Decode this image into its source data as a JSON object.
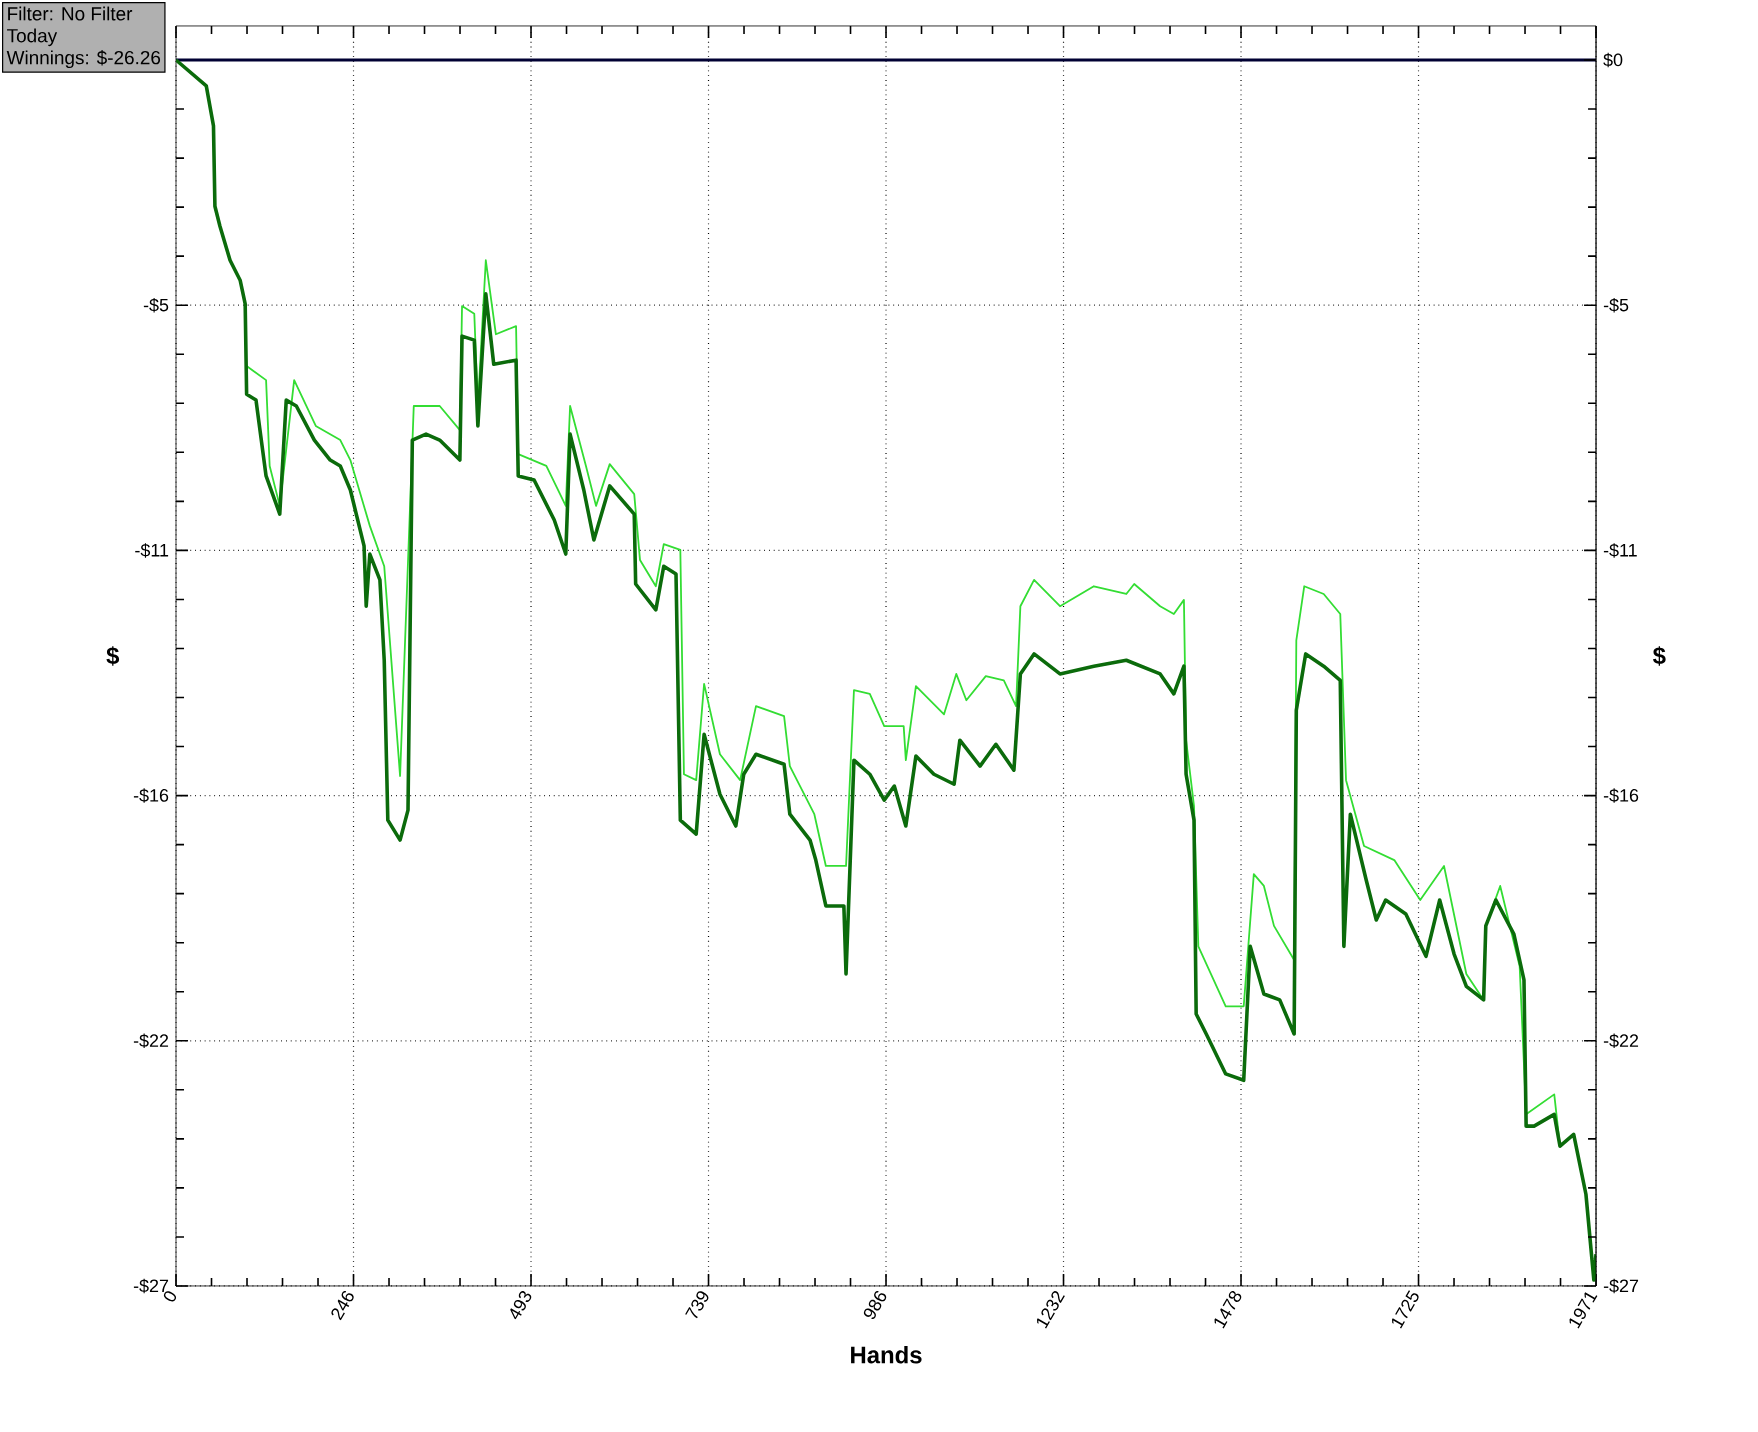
{
  "chart_data": {
    "type": "line",
    "xlabel": "Hands",
    "ylabel": "$",
    "y2label": "$",
    "annotations": [
      "Filter: No Filter",
      "Today",
      "Winnings: $-26.26"
    ],
    "xlim": [
      0,
      1971
    ],
    "xticks": [
      0,
      {
        "value": 246.375,
        "label": "246"
      },
      {
        "value": 492.75,
        "label": "493"
      },
      {
        "value": 739.125,
        "label": "739"
      },
      {
        "value": 985.5,
        "label": "986"
      },
      {
        "value": 1231.875,
        "label": "1232"
      },
      {
        "value": 1478.25,
        "label": "1478"
      },
      {
        "value": 1724.625,
        "label": "1725"
      },
      1971
    ],
    "ylim": [
      -27,
      0.75
    ],
    "yticks": [
      {
        "value": 0,
        "label": null
      },
      {
        "value": -5.4,
        "label": "-$5"
      },
      {
        "value": -10.8,
        "label": "-$11"
      },
      {
        "value": -16.2,
        "label": "-$16"
      },
      {
        "value": -21.6,
        "label": "-$22"
      },
      {
        "value": -27,
        "label": "-$27"
      }
    ],
    "y2lim": [
      -27,
      0.75
    ],
    "y2ticks": [
      {
        "value": 0,
        "label": "$0"
      },
      {
        "value": -5.4,
        "label": "-$5"
      },
      {
        "value": -10.8,
        "label": "-$11"
      },
      {
        "value": -16.2,
        "label": "-$16"
      },
      {
        "value": -21.6,
        "label": "-$22"
      },
      {
        "value": -27,
        "label": "-$27"
      }
    ],
    "grid": true,
    "ref_lines": [
      {
        "axis": "y",
        "value": 0,
        "color": "#000033"
      }
    ],
    "series": [
      {
        "color": "#33dd33",
        "x": [
          98,
          125,
          130,
          144,
          164,
          194,
          228,
          242,
          269,
          289,
          311,
          330,
          366,
          394,
          397,
          414,
          419,
          430,
          444,
          472,
          475,
          514,
          541,
          547,
          569,
          583,
          602,
          636,
          644,
          666,
          677,
          700,
          705,
          722,
          733,
          755,
          783,
          805,
          844,
          852,
          886,
          902,
          930,
          941,
          963,
          983,
          1010,
          1013,
          1027,
          1066,
          1083,
          1097,
          1124,
          1149,
          1166,
          1172,
          1191,
          1227,
          1274,
          1319,
          1330,
          1366,
          1385,
          1399,
          1402,
          1413,
          1419,
          1457,
          1482,
          1496,
          1510,
          1524,
          1552,
          1555,
          1566,
          1593,
          1616,
          1624,
          1649,
          1691,
          1727,
          1760,
          1791,
          1815,
          1818,
          1838,
          1865,
          1874,
          1913,
          1921,
          1940
        ],
        "values": [
          -6.74,
          -7.05,
          -8.94,
          -9.82,
          -7.05,
          -8.06,
          -8.37,
          -8.81,
          -10.26,
          -11.15,
          -15.77,
          -7.62,
          -7.62,
          -8.15,
          -5.42,
          -5.59,
          -7.62,
          -4.41,
          -6.04,
          -5.86,
          -8.68,
          -8.94,
          -9.82,
          -7.62,
          -8.94,
          -9.82,
          -8.9,
          -9.56,
          -11.01,
          -11.59,
          -10.66,
          -10.79,
          -15.73,
          -15.86,
          -13.74,
          -15.29,
          -15.86,
          -14.23,
          -14.45,
          -15.55,
          -16.61,
          -17.75,
          -17.75,
          -13.88,
          -13.96,
          -14.67,
          -14.67,
          -15.42,
          -13.79,
          -14.41,
          -13.52,
          -14.1,
          -13.57,
          -13.66,
          -14.23,
          -12.03,
          -11.45,
          -12.03,
          -11.59,
          -11.76,
          -11.54,
          -12.03,
          -12.2,
          -11.89,
          -14.98,
          -16.43,
          -19.52,
          -20.84,
          -20.84,
          -17.93,
          -18.19,
          -19.07,
          -19.82,
          -12.78,
          -11.59,
          -11.76,
          -12.2,
          -15.86,
          -17.31,
          -17.62,
          -18.5,
          -17.75,
          -20.13,
          -20.7,
          -19.07,
          -18.19,
          -19.96,
          -23.22,
          -22.78,
          -23.92,
          -23.66
        ]
      },
      {
        "color": "#0b6b0b",
        "x": [
          0,
          42,
          52,
          54,
          61,
          75,
          89,
          96,
          98,
          111,
          125,
          144,
          153,
          167,
          192,
          214,
          228,
          242,
          261,
          264,
          269,
          283,
          289,
          294,
          311,
          322,
          328,
          347,
          366,
          394,
          397,
          414,
          419,
          430,
          441,
          472,
          475,
          497,
          525,
          541,
          547,
          566,
          580,
          602,
          636,
          638,
          666,
          677,
          694,
          700,
          722,
          733,
          755,
          777,
          788,
          805,
          844,
          852,
          880,
          888,
          902,
          927,
          930,
          941,
          963,
          983,
          997,
          1013,
          1027,
          1052,
          1080,
          1088,
          1116,
          1138,
          1163,
          1172,
          1191,
          1227,
          1274,
          1319,
          1366,
          1385,
          1399,
          1402,
          1413,
          1416,
          1430,
          1457,
          1482,
          1491,
          1510,
          1532,
          1552,
          1555,
          1568,
          1593,
          1616,
          1621,
          1630,
          1652,
          1666,
          1679,
          1707,
          1735,
          1754,
          1774,
          1791,
          1815,
          1818,
          1832,
          1857,
          1871,
          1874,
          1885,
          1913,
          1921,
          1940,
          1957,
          1968,
          1971
        ],
        "values": [
          0,
          -0.57,
          -1.45,
          -3.22,
          -3.66,
          -4.41,
          -4.85,
          -5.37,
          -7.36,
          -7.49,
          -9.16,
          -10.0,
          -7.49,
          -7.62,
          -8.37,
          -8.81,
          -8.94,
          -9.47,
          -10.7,
          -12.03,
          -10.88,
          -11.45,
          -13.22,
          -16.74,
          -17.18,
          -16.52,
          -8.37,
          -8.24,
          -8.37,
          -8.81,
          -6.08,
          -6.17,
          -8.06,
          -5.15,
          -6.7,
          -6.61,
          -9.16,
          -9.25,
          -10.13,
          -10.88,
          -8.24,
          -9.47,
          -10.57,
          -9.38,
          -10.0,
          -11.54,
          -12.11,
          -11.15,
          -11.32,
          -16.74,
          -17.05,
          -14.85,
          -16.17,
          -16.87,
          -15.73,
          -15.29,
          -15.51,
          -16.61,
          -17.18,
          -17.62,
          -18.63,
          -18.63,
          -20.13,
          -15.42,
          -15.73,
          -16.3,
          -15.99,
          -16.87,
          -15.33,
          -15.73,
          -15.95,
          -14.98,
          -15.55,
          -15.07,
          -15.64,
          -13.52,
          -13.08,
          -13.52,
          -13.35,
          -13.22,
          -13.52,
          -13.96,
          -13.35,
          -15.73,
          -16.74,
          -21.01,
          -21.45,
          -22.33,
          -22.47,
          -19.52,
          -20.57,
          -20.7,
          -21.45,
          -14.32,
          -13.08,
          -13.35,
          -13.66,
          -19.52,
          -16.61,
          -18.06,
          -18.94,
          -18.5,
          -18.81,
          -19.74,
          -18.5,
          -19.69,
          -20.4,
          -20.7,
          -19.07,
          -18.5,
          -19.25,
          -20.26,
          -23.48,
          -23.48,
          -23.22,
          -23.92,
          -23.66,
          -24.98,
          -26.87,
          -26.3
        ]
      }
    ]
  }
}
